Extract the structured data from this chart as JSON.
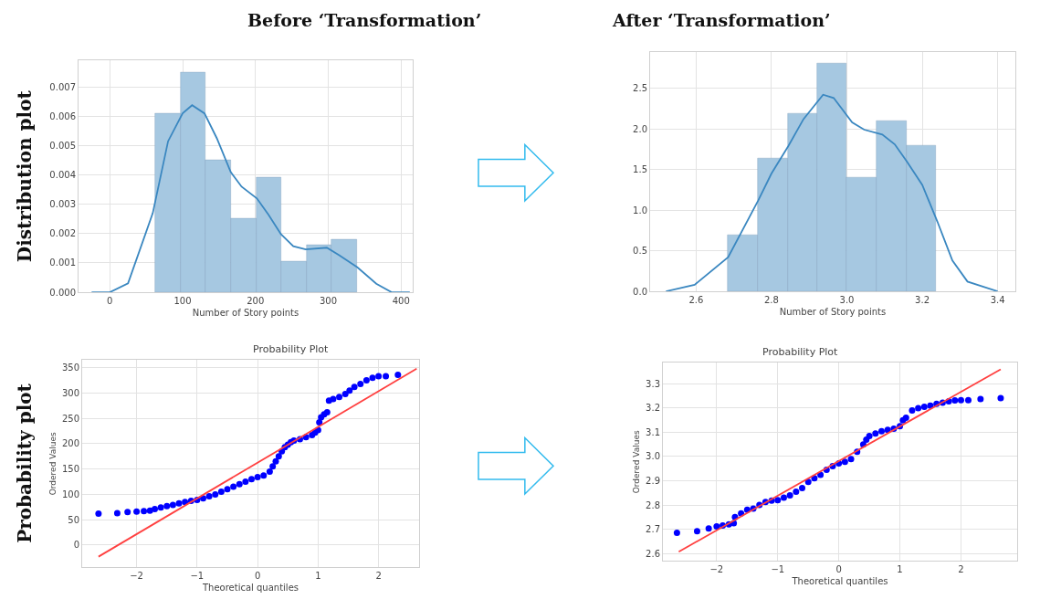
{
  "chart_data": [
    {
      "type": "histogram",
      "title": "Before ‘Transformation’",
      "ylabel": "Distribution plot",
      "xlabel": "Number of Story points",
      "series": [
        {
          "type": "histogram",
          "color": "#a6c8e1",
          "bins": [
            62,
            97,
            131,
            166,
            201,
            235,
            270,
            305,
            340
          ],
          "values": [
            0.0061,
            0.0075,
            0.0045,
            0.0025,
            0.0039,
            0.00105,
            0.0016,
            0.0018
          ]
        },
        {
          "type": "line",
          "color": "#3a87c0",
          "x": [
            -25,
            0,
            25,
            59,
            80,
            100,
            113,
            130,
            147,
            166,
            181,
            202,
            218,
            235,
            252,
            269,
            298,
            315,
            340,
            366,
            387,
            412
          ],
          "values": [
            0,
            0,
            0.0003,
            0.0027,
            0.00515,
            0.0061,
            0.00638,
            0.0061,
            0.00525,
            0.0041,
            0.0036,
            0.0032,
            0.00264,
            0.00198,
            0.00157,
            0.00146,
            0.00152,
            0.00126,
            0.00085,
            0.00029,
            0,
            0
          ]
        }
      ],
      "xlim": [
        -43,
        416
      ],
      "ylim": [
        0,
        0.0079
      ],
      "xticks": [
        0,
        100,
        200,
        300,
        400
      ],
      "yticks": [
        {
          "value": 0,
          "label": "0.000"
        },
        {
          "value": 0.001,
          "label": "0.001"
        },
        {
          "value": 0.002,
          "label": "0.002"
        },
        {
          "value": 0.003,
          "label": "0.003"
        },
        {
          "value": 0.004,
          "label": "0.004"
        },
        {
          "value": 0.005,
          "label": "0.005"
        },
        {
          "value": 0.006,
          "label": "0.006"
        },
        {
          "value": 0.007,
          "label": "0.007"
        }
      ],
      "grid": true
    },
    {
      "type": "histogram",
      "title": "After ‘Transformation’",
      "xlabel": "Number of Story points",
      "series": [
        {
          "type": "histogram",
          "color": "#a6c8e1",
          "bins": [
            2.685,
            2.765,
            2.843,
            2.921,
            3.0,
            3.079,
            3.158,
            3.237
          ],
          "values": [
            0.69,
            1.64,
            2.19,
            2.81,
            1.4,
            2.1,
            1.79
          ]
        },
        {
          "type": "line",
          "color": "#3a87c0",
          "x": [
            2.52,
            2.596,
            2.685,
            2.765,
            2.8,
            2.845,
            2.885,
            2.937,
            2.965,
            3.014,
            3.046,
            3.094,
            3.127,
            3.159,
            3.2,
            3.24,
            3.28,
            3.32,
            3.4
          ],
          "values": [
            0,
            0.08,
            0.42,
            1.12,
            1.45,
            1.79,
            2.12,
            2.42,
            2.38,
            2.08,
            1.99,
            1.93,
            1.81,
            1.6,
            1.31,
            0.86,
            0.38,
            0.12,
            0
          ]
        }
      ],
      "xlim": [
        2.478,
        3.447
      ],
      "ylim": [
        0,
        2.94
      ],
      "xticks": [
        2.6,
        2.8,
        {
          "value": 3.0,
          "label": "3.0"
        },
        3.2,
        3.4
      ],
      "yticks": [
        {
          "value": 0,
          "label": "0.0"
        },
        0.5,
        {
          "value": 1,
          "label": "1.0"
        },
        1.5,
        {
          "value": 2,
          "label": "2.0"
        },
        2.5
      ],
      "grid": true
    },
    {
      "type": "scatter",
      "title": "Probability Plot",
      "xlabel": "Theoretical quantiles",
      "ylabel": "Ordered Values",
      "annotations": [
        "Probability plot"
      ],
      "series": [
        {
          "marker": "circle",
          "color": "#0000ff",
          "x": [
            -2.63,
            -2.32,
            -2.15,
            -2.0,
            -1.88,
            -1.78,
            -1.7,
            -1.6,
            -1.5,
            -1.4,
            -1.3,
            -1.2,
            -1.1,
            -1.0,
            -0.9,
            -0.8,
            -0.7,
            -0.6,
            -0.5,
            -0.4,
            -0.3,
            -0.2,
            -0.1,
            0.0,
            0.1,
            0.2,
            0.25,
            0.3,
            0.35,
            0.4,
            0.45,
            0.5,
            0.55,
            0.6,
            0.7,
            0.8,
            0.9,
            0.95,
            1.0,
            1.02,
            1.05,
            1.1,
            1.15,
            1.18,
            1.25,
            1.35,
            1.45,
            1.52,
            1.6,
            1.7,
            1.8,
            1.9,
            2.0,
            2.12,
            2.32
          ],
          "values": [
            62,
            63,
            65,
            66,
            67,
            68,
            71,
            74,
            77,
            79,
            82,
            85,
            87,
            89,
            92,
            96,
            100,
            105,
            110,
            115,
            120,
            125,
            130,
            134,
            137,
            145,
            155,
            165,
            175,
            185,
            193,
            198,
            203,
            206,
            209,
            213,
            217,
            222,
            227,
            242,
            252,
            258,
            262,
            285,
            288,
            292,
            298,
            305,
            312,
            318,
            325,
            330,
            333,
            333,
            336
          ]
        },
        {
          "type": "line",
          "color": "#ff4040",
          "x": [
            -2.63,
            2.63
          ],
          "values": [
            -23,
            348
          ]
        }
      ],
      "xlim": [
        -2.9,
        2.67
      ],
      "ylim": [
        -44,
        365
      ],
      "xticks": [
        {
          "value": -2,
          "label": "−2"
        },
        {
          "value": -1,
          "label": "−1"
        },
        0,
        1,
        2
      ],
      "yticks": [
        0,
        50,
        100,
        150,
        200,
        250,
        300,
        350
      ],
      "grid": true
    },
    {
      "type": "scatter",
      "title": "Probability Plot",
      "xlabel": "Theoretical quantiles",
      "ylabel": "Ordered Values",
      "series": [
        {
          "marker": "circle",
          "color": "#0000ff",
          "x": [
            -2.65,
            -2.32,
            -2.13,
            -2.0,
            -1.9,
            -1.8,
            -1.72,
            -1.7,
            -1.6,
            -1.5,
            -1.4,
            -1.3,
            -1.2,
            -1.1,
            -1.0,
            -0.9,
            -0.8,
            -0.7,
            -0.6,
            -0.5,
            -0.4,
            -0.3,
            -0.2,
            -0.1,
            0.0,
            0.1,
            0.2,
            0.3,
            0.4,
            0.45,
            0.5,
            0.6,
            0.7,
            0.8,
            0.9,
            1.0,
            1.05,
            1.1,
            1.2,
            1.3,
            1.4,
            1.5,
            1.6,
            1.7,
            1.8,
            1.9,
            2.0,
            2.12,
            2.32,
            2.65
          ],
          "values": [
            2.685,
            2.692,
            2.703,
            2.712,
            2.715,
            2.72,
            2.725,
            2.75,
            2.765,
            2.78,
            2.785,
            2.8,
            2.812,
            2.818,
            2.82,
            2.83,
            2.84,
            2.855,
            2.87,
            2.895,
            2.91,
            2.925,
            2.945,
            2.96,
            2.972,
            2.978,
            2.99,
            3.02,
            3.05,
            3.07,
            3.085,
            3.095,
            3.105,
            3.11,
            3.115,
            3.125,
            3.15,
            3.16,
            3.19,
            3.2,
            3.205,
            3.21,
            3.218,
            3.222,
            3.228,
            3.232,
            3.233,
            3.233,
            3.237,
            3.241
          ]
        },
        {
          "type": "line",
          "color": "#ff4040",
          "x": [
            -2.62,
            2.65
          ],
          "values": [
            2.607,
            3.36
          ]
        }
      ],
      "xlim": [
        -2.88,
        2.92
      ],
      "ylim": [
        2.569,
        3.387
      ],
      "xticks": [
        {
          "value": -2,
          "label": "−2"
        },
        {
          "value": -1,
          "label": "−1"
        },
        0,
        1,
        2
      ],
      "yticks": [
        2.6,
        2.7,
        2.8,
        2.9,
        {
          "value": 3.0,
          "label": "3.0"
        },
        3.1,
        3.2,
        3.3
      ],
      "grid": true
    }
  ]
}
